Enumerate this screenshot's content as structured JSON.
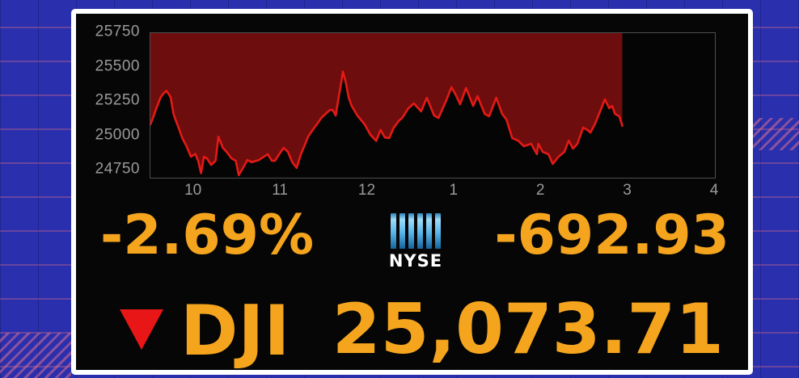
{
  "colors": {
    "background_blue": "#2a2fae",
    "panel_black": "#060606",
    "border_white": "#ffffff",
    "accent_gold": "#f5a51d",
    "line_red": "#e41a16",
    "fill_dark_red": "#6e0d0d",
    "triangle_red": "#e81616",
    "axis_label_gray": "#9a9a9a",
    "nyse_bar_blue_light": "#9edcf8",
    "nyse_bar_blue_dark": "#15639c"
  },
  "ticker": {
    "percent_change": "-2.69%",
    "points_change": "-692.93",
    "symbol": "DJI",
    "last_price": "25,073.71",
    "direction": "down",
    "exchange": {
      "name": "NYSE",
      "logo_bar_count": 6
    }
  },
  "chart_data": {
    "type": "area",
    "title": "DJI intraday price",
    "xlabel": "",
    "ylabel": "",
    "grid": false,
    "legend": false,
    "fill_above_line": true,
    "x_axis": {
      "unit": "minutes after 9:30 open",
      "range_minutes": [
        0,
        390
      ],
      "tick_minutes": [
        30,
        90,
        150,
        210,
        270,
        330,
        390
      ],
      "tick_labels": [
        "10",
        "11",
        "12",
        "1",
        "2",
        "3",
        "4"
      ]
    },
    "y_axis": {
      "range": [
        24697,
        25750
      ],
      "tick_values": [
        25750,
        25500,
        25250,
        25000,
        24750
      ],
      "tick_labels": [
        "25750",
        "25500",
        "25250",
        "25000",
        "24750"
      ]
    },
    "series": [
      {
        "name": "DJI",
        "last_value": 25073.71,
        "points": [
          [
            0,
            25085
          ],
          [
            2,
            25140
          ],
          [
            4,
            25200
          ],
          [
            7,
            25280
          ],
          [
            9,
            25310
          ],
          [
            11,
            25330
          ],
          [
            13,
            25300
          ],
          [
            14,
            25280
          ],
          [
            16,
            25160
          ],
          [
            17,
            25130
          ],
          [
            20,
            25045
          ],
          [
            22,
            24985
          ],
          [
            25,
            24925
          ],
          [
            28,
            24850
          ],
          [
            31,
            24870
          ],
          [
            33,
            24820
          ],
          [
            35,
            24730
          ],
          [
            37,
            24850
          ],
          [
            39,
            24838
          ],
          [
            42,
            24790
          ],
          [
            45,
            24820
          ],
          [
            47,
            24995
          ],
          [
            50,
            24915
          ],
          [
            53,
            24880
          ],
          [
            56,
            24838
          ],
          [
            59,
            24820
          ],
          [
            61,
            24715
          ],
          [
            64,
            24768
          ],
          [
            67,
            24826
          ],
          [
            70,
            24810
          ],
          [
            75,
            24826
          ],
          [
            81,
            24868
          ],
          [
            84,
            24820
          ],
          [
            86,
            24820
          ],
          [
            89,
            24868
          ],
          [
            92,
            24914
          ],
          [
            95,
            24885
          ],
          [
            98,
            24810
          ],
          [
            101,
            24768
          ],
          [
            104,
            24868
          ],
          [
            107,
            24944
          ],
          [
            109,
            24997
          ],
          [
            112,
            25044
          ],
          [
            115,
            25085
          ],
          [
            118,
            25132
          ],
          [
            121,
            25162
          ],
          [
            124,
            25190
          ],
          [
            126,
            25190
          ],
          [
            128,
            25150
          ],
          [
            130,
            25280
          ],
          [
            132,
            25400
          ],
          [
            133,
            25470
          ],
          [
            135,
            25390
          ],
          [
            137,
            25280
          ],
          [
            139,
            25220
          ],
          [
            143,
            25150
          ],
          [
            148,
            25085
          ],
          [
            152,
            25010
          ],
          [
            156,
            24965
          ],
          [
            159,
            25045
          ],
          [
            162,
            24990
          ],
          [
            165,
            24985
          ],
          [
            168,
            25060
          ],
          [
            172,
            25115
          ],
          [
            174,
            25132
          ],
          [
            178,
            25200
          ],
          [
            182,
            25238
          ],
          [
            187,
            25180
          ],
          [
            191,
            25279
          ],
          [
            196,
            25150
          ],
          [
            199,
            25132
          ],
          [
            204,
            25250
          ],
          [
            208,
            25356
          ],
          [
            211,
            25300
          ],
          [
            214,
            25232
          ],
          [
            218,
            25350
          ],
          [
            220,
            25300
          ],
          [
            223,
            25220
          ],
          [
            226,
            25291
          ],
          [
            231,
            25162
          ],
          [
            234,
            25144
          ],
          [
            239,
            25279
          ],
          [
            243,
            25162
          ],
          [
            246,
            25120
          ],
          [
            250,
            24985
          ],
          [
            254,
            24967
          ],
          [
            258,
            24926
          ],
          [
            263,
            24944
          ],
          [
            267,
            24868
          ],
          [
            268,
            24944
          ],
          [
            271,
            24885
          ],
          [
            275,
            24868
          ],
          [
            278,
            24797
          ],
          [
            282,
            24850
          ],
          [
            286,
            24885
          ],
          [
            289,
            24967
          ],
          [
            292,
            24909
          ],
          [
            295,
            24944
          ],
          [
            299,
            25062
          ],
          [
            302,
            25044
          ],
          [
            304,
            25026
          ],
          [
            307,
            25085
          ],
          [
            310,
            25162
          ],
          [
            314,
            25268
          ],
          [
            317,
            25203
          ],
          [
            319,
            25220
          ],
          [
            321,
            25162
          ],
          [
            324,
            25144
          ],
          [
            326,
            25074
          ]
        ]
      }
    ]
  }
}
